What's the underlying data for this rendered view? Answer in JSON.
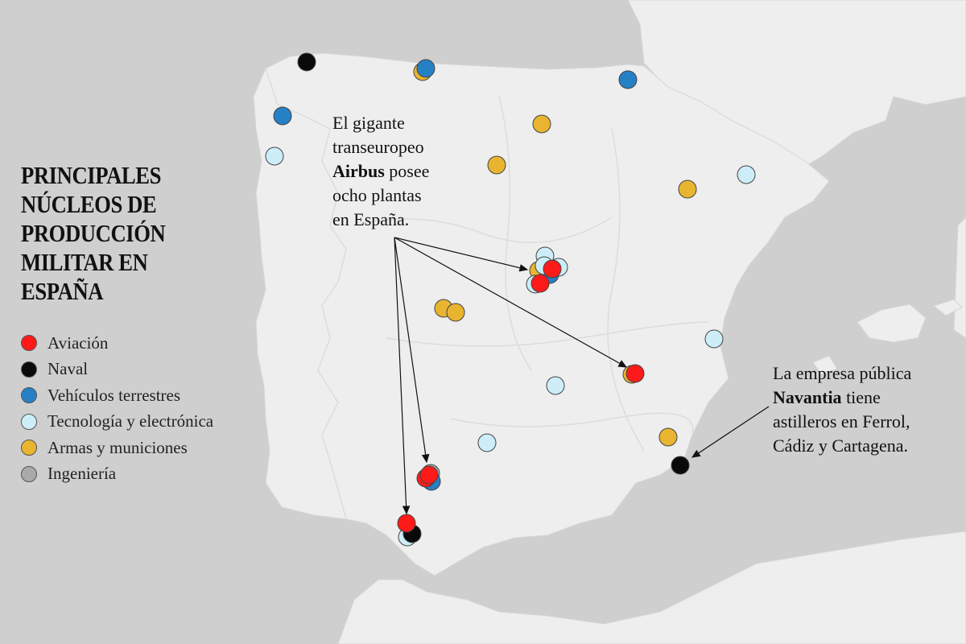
{
  "title_lines": [
    "PRINCIPALES",
    "NÚCLEOS DE",
    "PRODUCCIÓN",
    "MILITAR EN",
    "ESPAÑA"
  ],
  "legend": [
    {
      "label": "Aviación",
      "color": "#ff1a1a"
    },
    {
      "label": "Naval",
      "color": "#0a0a0a"
    },
    {
      "label": "Vehículos terrestres",
      "color": "#2680c6"
    },
    {
      "label": "Tecnología y electrónica",
      "color": "#cdeef8"
    },
    {
      "label": "Armas y municiones",
      "color": "#e9b530"
    },
    {
      "label": "Ingeniería",
      "color": "#a9a9a9"
    }
  ],
  "annotations": {
    "airbus": {
      "line1": "El gigante",
      "line2": "transeuropeo",
      "line3_bold": "Airbus",
      "line3_rest": " posee",
      "line4": "ocho plantas",
      "line5": "en España."
    },
    "navantia": {
      "line1": "La empresa pública",
      "line2_bold": "Navantia",
      "line2_rest": " tiene",
      "line3": "astilleros en Ferrol,",
      "line4": "Cádiz y Cartagena."
    }
  },
  "colors": {
    "sea": "#cfcfcf",
    "land": "#eeeeee",
    "border": "#d9d9d9",
    "aviacion": "#ff1a1a",
    "naval": "#0a0a0a",
    "vehiculos": "#2680c6",
    "tecnologia": "#cdeef8",
    "armas": "#e9b530",
    "ingenieria": "#a9a9a9"
  }
}
